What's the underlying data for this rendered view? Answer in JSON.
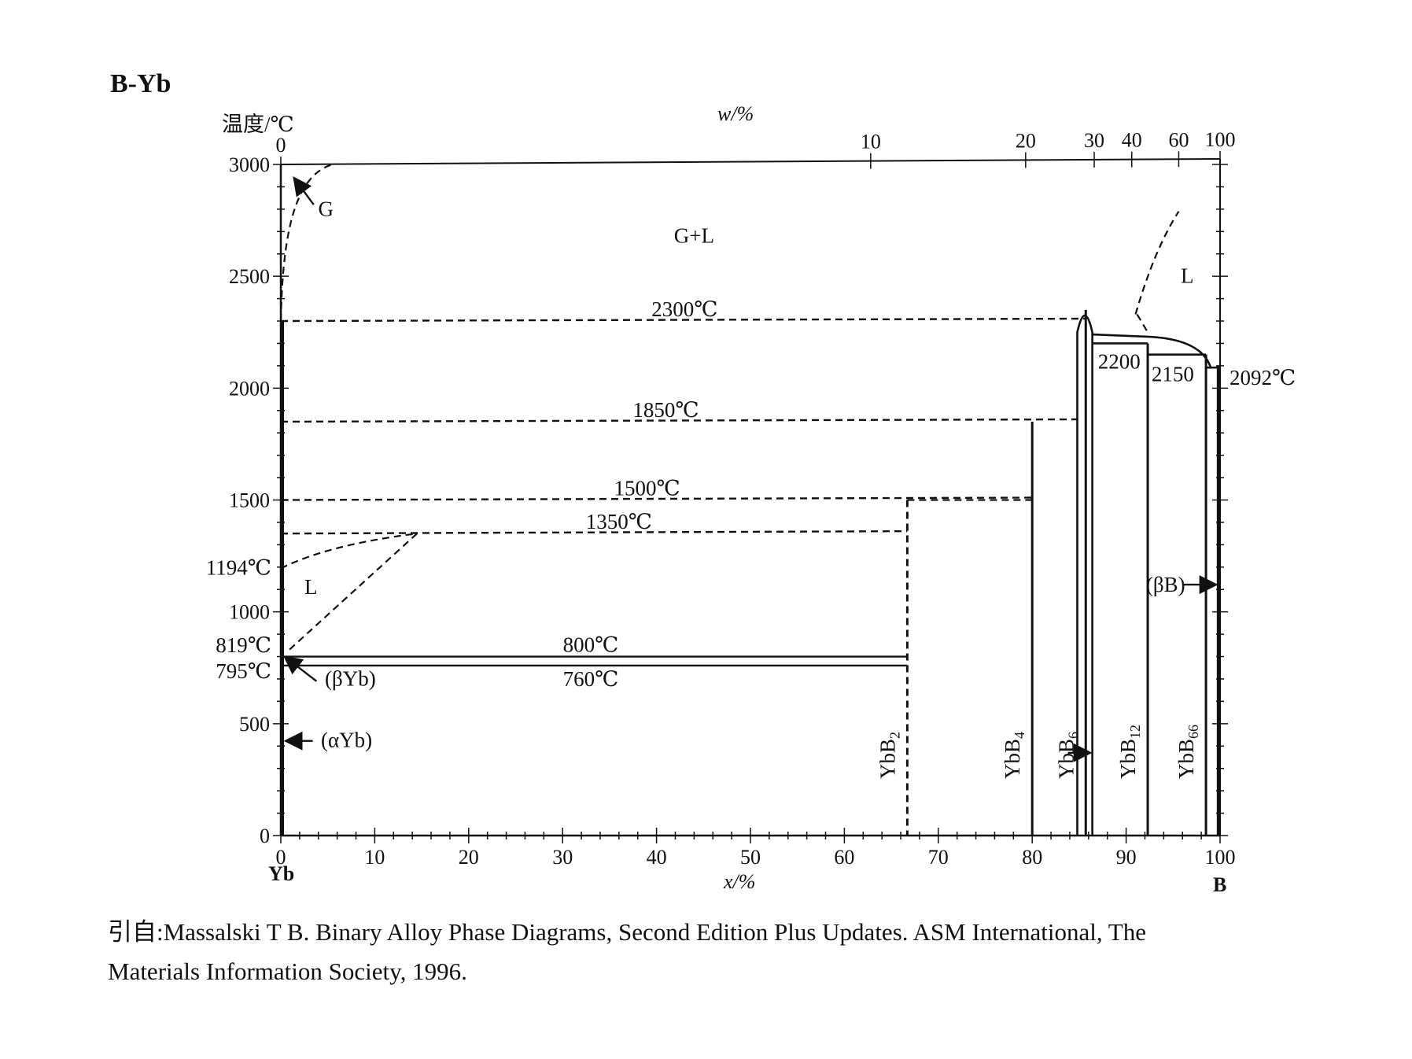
{
  "header": {
    "title": "B-Yb",
    "y_axis_label": "温度/℃",
    "top_axis_label": "w/%",
    "bottom_axis_label": "x/%",
    "left_end_label": "Yb",
    "right_end_label": "B"
  },
  "caption": {
    "line1": "引自:Massalski T B. Binary Alloy Phase Diagrams, Second Edition Plus Updates. ASM International, The",
    "line2": "Materials Information Society, 1996."
  },
  "chart_data": {
    "type": "phase-diagram",
    "title": "B-Yb",
    "xlabel": "x/%",
    "ylabel": "温度/℃",
    "top_xlabel": "w/%",
    "xlim": [
      0,
      100
    ],
    "ylim": [
      0,
      3000
    ],
    "x_ticks": [
      0,
      10,
      20,
      30,
      40,
      50,
      60,
      70,
      80,
      90,
      100
    ],
    "y_ticks": [
      0,
      500,
      1000,
      1500,
      2000,
      2500,
      3000
    ],
    "top_ticks": [
      {
        "label": "0",
        "x": 0
      },
      {
        "label": "10",
        "x": 62.8
      },
      {
        "label": "20",
        "x": 79.3
      },
      {
        "label": "30",
        "x": 86.6
      },
      {
        "label": "40",
        "x": 90.6
      },
      {
        "label": "60",
        "x": 95.6
      },
      {
        "label": "100",
        "x": 100
      }
    ],
    "isotherms": [
      {
        "label": "2300℃",
        "t": 2300,
        "x_from": 0,
        "x_to": 85.7,
        "style": "dashed"
      },
      {
        "label": "1850℃",
        "t": 1850,
        "x_from": 0,
        "x_to": 84.8,
        "style": "dashed"
      },
      {
        "label": "1500℃",
        "t": 1500,
        "x_from": 0,
        "x_to": 80,
        "style": "dashed"
      },
      {
        "label": "1350℃",
        "t": 1350,
        "x_from": 0,
        "x_to": 66.7,
        "style": "dashed"
      },
      {
        "label": "800℃",
        "t": 800,
        "x_from": 0,
        "x_to": 66.7,
        "style": "solid"
      },
      {
        "label": "760℃",
        "t": 760,
        "x_from": 0,
        "x_to": 66.7,
        "style": "solid"
      }
    ],
    "side_labels": [
      {
        "label": "1194℃",
        "t": 1194
      },
      {
        "label": "819℃",
        "t": 819
      },
      {
        "label": "795℃",
        "t": 795
      },
      {
        "label": "2092℃",
        "t": 2092
      }
    ],
    "peritectics": [
      {
        "label": "2200",
        "t": 2200
      },
      {
        "label": "2150",
        "t": 2150
      }
    ],
    "compounds": [
      {
        "label": "YbB",
        "sub": "2",
        "x": 66.7,
        "t_top": 1500,
        "style": "dashed"
      },
      {
        "label": "YbB",
        "sub": "4",
        "x": 80,
        "t_top": 1850,
        "style": "solid"
      },
      {
        "label": "YbB",
        "sub": "6",
        "x": 85.7,
        "t_top": 2350,
        "style": "solid"
      },
      {
        "label": "YbB",
        "sub": "12",
        "x": 92.3,
        "t_top": 2200,
        "style": "solid"
      },
      {
        "label": "YbB",
        "sub": "66",
        "x": 98.5,
        "t_top": 2150,
        "style": "solid"
      }
    ],
    "phase_fields": [
      {
        "label": "G+L",
        "x": 44,
        "t": 2650
      },
      {
        "label": "L",
        "x": 96.5,
        "t": 2470
      },
      {
        "label": "L",
        "x": 3.2,
        "t": 1080
      },
      {
        "label": "G",
        "x": 4.8,
        "t": 2770
      },
      {
        "label": "(βYb)",
        "x": 7.4,
        "t": 670
      },
      {
        "label": "(αYb)",
        "x": 7,
        "t": 395
      },
      {
        "label": "(βB)",
        "x": 94.2,
        "t": 1090
      }
    ],
    "grid": false,
    "colors": {
      "ink": "#111111",
      "background": "#ffffff"
    }
  }
}
